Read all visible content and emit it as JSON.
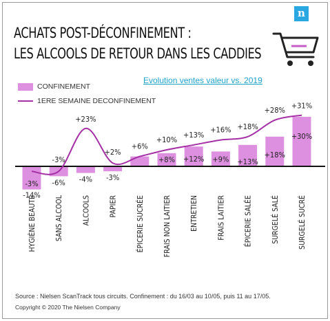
{
  "header": {
    "title_line1": "ACHATS POST-DÉCONFINEMENT :",
    "title_line2": "LES ALCOOLS DE RETOUR DANS LES CADDIES",
    "logo": "n",
    "subtitle": "Evolution ventes valeur  vs. 2019"
  },
  "legend": {
    "bar_label": "CONFINEMENT",
    "line_label": "1ERE SEMAINE DECONFINEMENT"
  },
  "footer": {
    "source": "Source : Nielsen ScanTrack tous circuits. Confinement : du 16/03 au 10/05, puis 11 au 17/05.",
    "copyright": "Copyright © 2020 The Nielsen Company"
  },
  "colors": {
    "bar": "#dd90df",
    "line": "#a52fa5",
    "cart_accent": "#c45dc6"
  },
  "icons": {
    "cart": "shopping-cart-icon",
    "logo": "nielsen-logo"
  },
  "chart_data": {
    "type": "bar",
    "categories": [
      "HYGIÈNE BEAUTÉ",
      "SANS ALCOOL",
      "ALCOOLS",
      "PAPIER",
      "ÉPICERIE SUCRÉE",
      "FRAIS NON LAITIER",
      "ENTRETIEN",
      "FRAIS LAITIER",
      "ÉPICERIE SALÉE",
      "SURGELÉ SALÉ",
      "SURGELÉ SUCRÉ"
    ],
    "series": [
      {
        "name": "CONFINEMENT",
        "type": "bar",
        "values": [
          -14,
          -6,
          -4,
          -3,
          6,
          8,
          12,
          9,
          13,
          18,
          30
        ],
        "labels": [
          "-14%",
          "-6%",
          "-4%",
          "-3%",
          "",
          "+8%",
          "+12%",
          "+9%",
          "+13%",
          "+18%",
          "+30%"
        ]
      },
      {
        "name": "1ERE SEMAINE DECONFINEMENT",
        "type": "line",
        "values": [
          -3,
          -3,
          23,
          2,
          6,
          10,
          13,
          16,
          18,
          28,
          31
        ],
        "labels": [
          "-3%",
          "-3%",
          "+23%",
          "+2%",
          "+6%",
          "+10%",
          "+13%",
          "+16%",
          "+18%",
          "+28%",
          "+31%"
        ]
      }
    ],
    "ylim": [
      -16,
      34
    ],
    "grid": false,
    "legend_position": "top-left"
  }
}
